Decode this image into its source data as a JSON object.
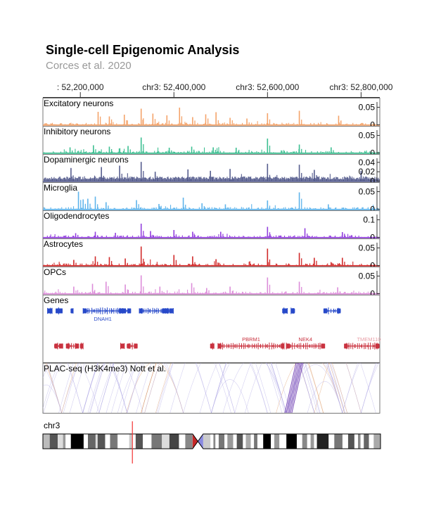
{
  "header": {
    "title": "Single-cell Epigenomic Analysis",
    "subtitle": "Corces et al. 2020"
  },
  "axis": {
    "ticks": [
      {
        "pos": 52200000,
        "label": ": 52,200,000"
      },
      {
        "pos": 52400000,
        "label": "chr3: 52,400,000"
      },
      {
        "pos": 52600000,
        "label": "chr3: 52,600,000"
      },
      {
        "pos": 52800000,
        "label": "chr3: 52,800,000"
      }
    ]
  },
  "chart_data": {
    "type": "area",
    "region": {
      "chrom": "chr3",
      "start": 52120000,
      "end": 52840000
    },
    "series": [
      {
        "name": "Excitatory neurons",
        "color": "#f4a36a",
        "ymax": 0.06,
        "yticks": [
          "0.05",
          "0"
        ],
        "seed": 11,
        "peaks": [
          [
            52238000,
            0.037
          ],
          [
            52262000,
            0.024
          ],
          [
            52294000,
            0.029
          ],
          [
            52330000,
            0.046
          ],
          [
            52355000,
            0.032
          ],
          [
            52385000,
            0.027
          ],
          [
            52412000,
            0.049
          ],
          [
            52440000,
            0.022
          ],
          [
            52468000,
            0.03
          ],
          [
            52490000,
            0.036
          ],
          [
            52520000,
            0.02
          ],
          [
            52556000,
            0.018
          ],
          [
            52600000,
            0.033
          ],
          [
            52668000,
            0.04
          ],
          [
            52752000,
            0.026
          ]
        ]
      },
      {
        "name": "Inhibitory neurons",
        "color": "#3cbf91",
        "ymax": 0.06,
        "yticks": [
          "0.05",
          "0"
        ],
        "seed": 23,
        "peaks": [
          [
            52178000,
            0.016
          ],
          [
            52228000,
            0.022
          ],
          [
            52262000,
            0.018
          ],
          [
            52302000,
            0.02
          ],
          [
            52330000,
            0.044
          ],
          [
            52390000,
            0.015
          ],
          [
            52438000,
            0.018
          ],
          [
            52484000,
            0.016
          ],
          [
            52533000,
            0.015
          ],
          [
            52600000,
            0.041
          ],
          [
            52668000,
            0.024
          ],
          [
            52736000,
            0.016
          ]
        ]
      },
      {
        "name": "Dopaminergic neurons",
        "color": "#565d8e",
        "ymax": 0.045,
        "yticks": [
          "0.04",
          "0.02",
          "0"
        ],
        "seed": 37,
        "peaks": [
          [
            52180000,
            0.028
          ],
          [
            52245000,
            0.03
          ],
          [
            52284000,
            0.033
          ],
          [
            52330000,
            0.041
          ],
          [
            52360000,
            0.02
          ],
          [
            52430000,
            0.025
          ],
          [
            52478000,
            0.022
          ],
          [
            52520000,
            0.026
          ],
          [
            52600000,
            0.037
          ],
          [
            52668000,
            0.035
          ],
          [
            52700000,
            0.024
          ],
          [
            52800000,
            0.022
          ]
        ]
      },
      {
        "name": "Microglia",
        "color": "#5fb4eb",
        "ymax": 0.06,
        "yticks": [
          "0.05",
          "0"
        ],
        "seed": 41,
        "peaks": [
          [
            52196000,
            0.05
          ],
          [
            52206000,
            0.028
          ],
          [
            52216000,
            0.03
          ],
          [
            52232000,
            0.036
          ],
          [
            52255000,
            0.02
          ],
          [
            52320000,
            0.026
          ],
          [
            52368000,
            0.015
          ],
          [
            52420000,
            0.033
          ],
          [
            52460000,
            0.017
          ],
          [
            52510000,
            0.014
          ],
          [
            52600000,
            0.025
          ],
          [
            52668000,
            0.048
          ],
          [
            52730000,
            0.014
          ]
        ]
      },
      {
        "name": "Oligodendrocytes",
        "color": "#9340de",
        "ymax": 0.12,
        "yticks": [
          "0.1",
          "0"
        ],
        "seed": 53,
        "peaks": [
          [
            52190000,
            0.024
          ],
          [
            52232000,
            0.032
          ],
          [
            52275000,
            0.026
          ],
          [
            52330000,
            0.078
          ],
          [
            52350000,
            0.036
          ],
          [
            52400000,
            0.042
          ],
          [
            52440000,
            0.032
          ],
          [
            52500000,
            0.032
          ],
          [
            52600000,
            0.06
          ],
          [
            52680000,
            0.052
          ],
          [
            52760000,
            0.03
          ]
        ]
      },
      {
        "name": "Astrocytes",
        "color": "#d12a2a",
        "ymax": 0.06,
        "yticks": [
          "0.05",
          "0"
        ],
        "seed": 67,
        "peaks": [
          [
            52186000,
            0.016
          ],
          [
            52232000,
            0.026
          ],
          [
            52262000,
            0.024
          ],
          [
            52296000,
            0.02
          ],
          [
            52330000,
            0.054
          ],
          [
            52400000,
            0.03
          ],
          [
            52440000,
            0.026
          ],
          [
            52490000,
            0.018
          ],
          [
            52600000,
            0.048
          ],
          [
            52668000,
            0.036
          ],
          [
            52700000,
            0.022
          ],
          [
            52760000,
            0.022
          ]
        ]
      },
      {
        "name": "OPCs",
        "color": "#dc8dd9",
        "ymax": 0.06,
        "yticks": [
          "0.05",
          "0"
        ],
        "seed": 79,
        "peaks": [
          [
            52186000,
            0.02
          ],
          [
            52226000,
            0.028
          ],
          [
            52255000,
            0.034
          ],
          [
            52296000,
            0.026
          ],
          [
            52330000,
            0.052
          ],
          [
            52370000,
            0.02
          ],
          [
            52438000,
            0.03
          ],
          [
            52470000,
            0.016
          ],
          [
            52520000,
            0.02
          ],
          [
            52600000,
            0.046
          ],
          [
            52668000,
            0.034
          ],
          [
            52750000,
            0.018
          ]
        ]
      }
    ],
    "genes_track": {
      "label": "Genes",
      "plus_color": "#2749c9",
      "minus_color": "#c9323f",
      "plus": [
        {
          "start": 52130000,
          "end": 52140000
        },
        {
          "start": 52148000,
          "end": 52162000
        },
        {
          "start": 52180000,
          "end": 52184000
        },
        {
          "start": 52206000,
          "end": 52290000,
          "name": "DNAH1"
        },
        {
          "start": 52290000,
          "end": 52308000
        },
        {
          "start": 52326000,
          "end": 52382000
        },
        {
          "start": 52382000,
          "end": 52398000
        },
        {
          "start": 52632000,
          "end": 52642000
        },
        {
          "start": 52650000,
          "end": 52658000
        },
        {
          "start": 52720000,
          "end": 52756000
        }
      ],
      "minus": [
        {
          "start": 52145000,
          "end": 52162000
        },
        {
          "start": 52170000,
          "end": 52196000
        },
        {
          "start": 52200000,
          "end": 52206000
        },
        {
          "start": 52286000,
          "end": 52294000
        },
        {
          "start": 52300000,
          "end": 52322000
        },
        {
          "start": 52478000,
          "end": 52486000
        },
        {
          "start": 52494000,
          "end": 52636000,
          "name": "PBRM1"
        },
        {
          "start": 52640000,
          "end": 52722000,
          "name": "NEK4"
        },
        {
          "start": 52764000,
          "end": 52840000,
          "name": "TMEM110"
        }
      ]
    },
    "arcs_track": {
      "label": "PLAC-seq (H3K4me3) Nott et al."
    },
    "ideogram": {
      "chrom": "chr3",
      "length": 198000000,
      "centromere": [
        87800000,
        94000000
      ],
      "marker_pos": 52480000,
      "marker_color": "#f33333",
      "bands": [
        [
          0,
          4000000,
          "#bbbbbb"
        ],
        [
          4000000,
          8700000,
          "#555555"
        ],
        [
          8700000,
          11800000,
          "#dddddd"
        ],
        [
          11800000,
          13300000,
          "#999999"
        ],
        [
          13300000,
          16400000,
          "#ffffff"
        ],
        [
          16400000,
          23900000,
          "#000000"
        ],
        [
          23900000,
          26400000,
          "#ffffff"
        ],
        [
          26400000,
          30900000,
          "#666666"
        ],
        [
          30900000,
          32100000,
          "#dddddd"
        ],
        [
          32100000,
          36500000,
          "#555555"
        ],
        [
          36500000,
          39400000,
          "#ffffff"
        ],
        [
          39400000,
          43700000,
          "#777777"
        ],
        [
          43700000,
          44100000,
          "#dddddd"
        ],
        [
          44100000,
          44200000,
          "#ffffff"
        ],
        [
          44200000,
          50600000,
          "#ffffff"
        ],
        [
          50600000,
          52300000,
          "#cccccc"
        ],
        [
          52300000,
          54400000,
          "#ffffff"
        ],
        [
          54400000,
          58600000,
          "#555555"
        ],
        [
          58600000,
          63700000,
          "#ffffff"
        ],
        [
          63700000,
          69800000,
          "#777777"
        ],
        [
          69800000,
          74200000,
          "#dddddd"
        ],
        [
          74200000,
          79800000,
          "#444444"
        ],
        [
          79800000,
          83500000,
          "#ffffff"
        ],
        [
          83500000,
          87800000,
          "#888888"
        ],
        [
          94000000,
          98300000,
          "#cccccc"
        ],
        [
          98300000,
          100000000,
          "#ffffff"
        ],
        [
          100000000,
          101200000,
          "#888888"
        ],
        [
          101200000,
          103100000,
          "#ffffff"
        ],
        [
          103100000,
          106500000,
          "#777777"
        ],
        [
          106500000,
          108200000,
          "#ffffff"
        ],
        [
          108200000,
          111600000,
          "#999999"
        ],
        [
          111600000,
          113700000,
          "#ffffff"
        ],
        [
          113700000,
          117300000,
          "#555555"
        ],
        [
          117300000,
          119000000,
          "#ffffff"
        ],
        [
          119000000,
          121900000,
          "#aaaaaa"
        ],
        [
          121900000,
          123800000,
          "#ffffff"
        ],
        [
          123800000,
          125800000,
          "#777777"
        ],
        [
          125800000,
          129200000,
          "#ffffff"
        ],
        [
          129200000,
          133700000,
          "#000000"
        ],
        [
          133700000,
          135700000,
          "#ffffff"
        ],
        [
          135700000,
          138700000,
          "#999999"
        ],
        [
          138700000,
          142800000,
          "#ffffff"
        ],
        [
          142800000,
          148900000,
          "#000000"
        ],
        [
          148900000,
          152100000,
          "#ffffff"
        ],
        [
          152100000,
          155000000,
          "#888888"
        ],
        [
          155000000,
          157000000,
          "#ffffff"
        ],
        [
          157000000,
          159000000,
          "#999999"
        ],
        [
          159000000,
          160700000,
          "#ffffff"
        ],
        [
          160700000,
          167600000,
          "#222222"
        ],
        [
          167600000,
          170900000,
          "#ffffff"
        ],
        [
          170900000,
          175700000,
          "#777777"
        ],
        [
          175700000,
          179000000,
          "#ffffff"
        ],
        [
          179000000,
          182700000,
          "#555555"
        ],
        [
          182700000,
          184800000,
          "#ffffff"
        ],
        [
          184800000,
          186300000,
          "#888888"
        ],
        [
          186300000,
          188200000,
          "#ffffff"
        ],
        [
          188200000,
          191200000,
          "#666666"
        ],
        [
          191200000,
          194000000,
          "#ffffff"
        ],
        [
          194000000,
          198000000,
          "#aaaaaa"
        ]
      ]
    }
  }
}
